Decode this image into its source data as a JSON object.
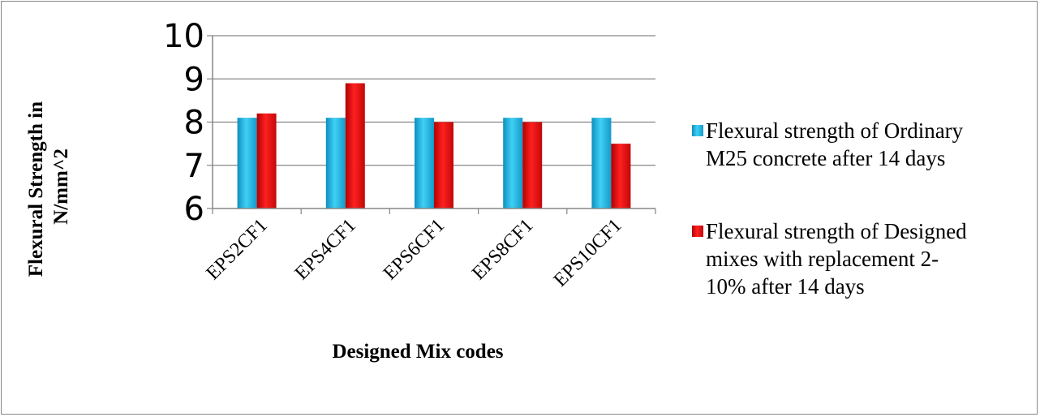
{
  "chart_data": {
    "type": "bar",
    "categories": [
      "EPS2CF1",
      "EPS4CF1",
      "EPS6CF1",
      "EPS8CF1",
      "EPS10CF1"
    ],
    "series": [
      {
        "name": "Flexural strength of Ordinary M25 concrete after 14 days",
        "legend_lines": [
          "Flexural strength of Ordinary",
          "M25 concrete after 14 days"
        ],
        "values": [
          8.1,
          8.1,
          8.1,
          8.1,
          8.1
        ],
        "color": "#1fb4e6"
      },
      {
        "name": "Flexural strength of Designed mixes with replacement 2-10% after 14 days",
        "legend_lines": [
          "Flexural strength of Designed",
          "mixes with replacement 2-",
          "10% after 14 days"
        ],
        "values": [
          8.2,
          8.9,
          8.0,
          8.0,
          7.5
        ],
        "color": "#e01010"
      }
    ],
    "yticks": [
      6,
      7,
      8,
      9,
      10
    ],
    "ylim": [
      6,
      10
    ],
    "ylabel_lines": [
      "Flexural Strength in",
      "N/mm^2"
    ],
    "xlabel": "Designed Mix codes",
    "grid": true,
    "legend_position": "right"
  }
}
